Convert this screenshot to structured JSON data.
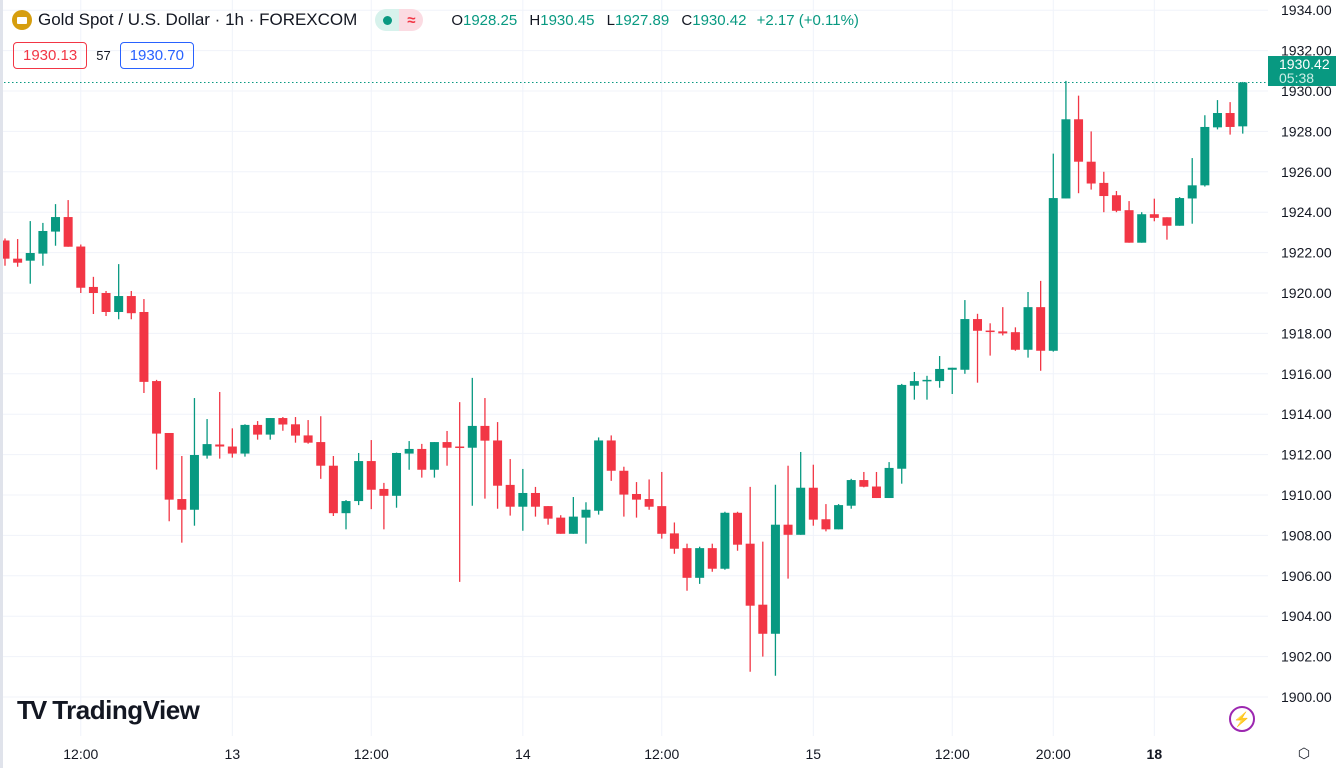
{
  "header": {
    "symbol_title": "Gold Spot / U.S. Dollar · 1h · FOREXCOM",
    "symbol_icon": "gold-bars-icon",
    "ohlc": {
      "o_label": "O",
      "o": "1928.25",
      "h_label": "H",
      "h": "1930.45",
      "l_label": "L",
      "l": "1927.89",
      "c_label": "C",
      "c": "1930.42",
      "change": "+2.17 (+0.11%)"
    },
    "bid": "1930.13",
    "spread": "57",
    "ask": "1930.70"
  },
  "last_price": {
    "price": "1930.42",
    "countdown": "05:38"
  },
  "logo_text": "TradingView",
  "colors": {
    "up": "#089981",
    "down": "#F23645",
    "grid": "#f0f3fa"
  },
  "chart_data": {
    "type": "candlestick",
    "title": "Gold Spot / U.S. Dollar · 1h · FOREXCOM",
    "ylim": [
      1899,
      1934.5
    ],
    "yticks": [
      "1900.00",
      "1902.00",
      "1904.00",
      "1906.00",
      "1908.00",
      "1910.00",
      "1912.00",
      "1914.00",
      "1916.00",
      "1918.00",
      "1920.00",
      "1922.00",
      "1924.00",
      "1926.00",
      "1928.00",
      "1930.00",
      "1932.00",
      "1934.00"
    ],
    "xticks": [
      {
        "i": 6,
        "label": "12:00"
      },
      {
        "i": 18,
        "label": "13"
      },
      {
        "i": 29,
        "label": "12:00"
      },
      {
        "i": 41,
        "label": "14"
      },
      {
        "i": 52,
        "label": "12:00"
      },
      {
        "i": 64,
        "label": "15"
      },
      {
        "i": 75,
        "label": "12:00"
      },
      {
        "i": 83,
        "label": "20:00"
      },
      {
        "i": 91,
        "label": "18",
        "bold": true
      }
    ],
    "ohlc": [
      [
        1922.6,
        1922.7,
        1921.35,
        1921.7
      ],
      [
        1921.7,
        1922.67,
        1921.3,
        1921.5
      ],
      [
        1921.6,
        1923.56,
        1920.46,
        1921.98
      ],
      [
        1921.95,
        1923.47,
        1921.35,
        1923.07
      ],
      [
        1923.04,
        1924.4,
        1922.34,
        1923.76
      ],
      [
        1923.76,
        1924.6,
        1922.29,
        1922.29
      ],
      [
        1922.3,
        1922.4,
        1920.0,
        1920.26
      ],
      [
        1920.3,
        1920.8,
        1918.96,
        1920.0
      ],
      [
        1920.0,
        1920.1,
        1918.86,
        1919.06
      ],
      [
        1919.06,
        1921.43,
        1918.7,
        1919.85
      ],
      [
        1919.85,
        1920.1,
        1918.7,
        1919.0
      ],
      [
        1919.06,
        1919.7,
        1915.05,
        1915.6
      ],
      [
        1915.64,
        1915.7,
        1911.26,
        1913.04
      ],
      [
        1913.07,
        1913.07,
        1908.7,
        1909.77
      ],
      [
        1909.8,
        1911.93,
        1907.64,
        1909.27
      ],
      [
        1909.27,
        1914.8,
        1908.48,
        1911.98
      ],
      [
        1911.95,
        1913.76,
        1911.8,
        1912.52
      ],
      [
        1912.5,
        1915.1,
        1911.8,
        1912.4
      ],
      [
        1912.4,
        1913.3,
        1911.85,
        1912.05
      ],
      [
        1912.05,
        1913.5,
        1911.9,
        1913.47
      ],
      [
        1913.47,
        1913.66,
        1912.74,
        1912.99
      ],
      [
        1912.99,
        1913.81,
        1912.74,
        1913.81
      ],
      [
        1913.81,
        1913.86,
        1913.18,
        1913.49
      ],
      [
        1913.5,
        1913.86,
        1912.59,
        1912.94
      ],
      [
        1912.95,
        1913.71,
        1912.54,
        1912.59
      ],
      [
        1912.62,
        1913.9,
        1910.8,
        1911.45
      ],
      [
        1911.45,
        1911.93,
        1908.96,
        1909.1
      ],
      [
        1909.1,
        1909.75,
        1908.3,
        1909.7
      ],
      [
        1909.7,
        1912.08,
        1909.5,
        1911.68
      ],
      [
        1911.68,
        1912.72,
        1909.3,
        1910.26
      ],
      [
        1910.3,
        1910.6,
        1908.3,
        1909.96
      ],
      [
        1909.96,
        1912.1,
        1909.37,
        1912.08
      ],
      [
        1912.05,
        1912.67,
        1911.25,
        1912.28
      ],
      [
        1912.28,
        1912.53,
        1910.86,
        1911.25
      ],
      [
        1911.25,
        1912.62,
        1910.86,
        1912.62
      ],
      [
        1912.62,
        1913.17,
        1911.45,
        1912.34
      ],
      [
        1912.4,
        1914.6,
        1905.7,
        1912.37
      ],
      [
        1912.34,
        1915.8,
        1909.47,
        1913.42
      ],
      [
        1913.42,
        1914.8,
        1909.82,
        1912.69
      ],
      [
        1912.7,
        1913.61,
        1909.32,
        1910.46
      ],
      [
        1910.5,
        1911.78,
        1908.98,
        1909.42
      ],
      [
        1909.42,
        1911.29,
        1908.23,
        1910.1
      ],
      [
        1910.1,
        1910.4,
        1908.93,
        1909.42
      ],
      [
        1909.45,
        1909.45,
        1908.53,
        1908.83
      ],
      [
        1908.88,
        1909.0,
        1908.08,
        1908.08
      ],
      [
        1908.08,
        1909.9,
        1908.08,
        1908.93
      ],
      [
        1908.88,
        1909.64,
        1907.59,
        1909.27
      ],
      [
        1909.22,
        1912.85,
        1909.03,
        1912.7
      ],
      [
        1912.7,
        1912.95,
        1910.7,
        1911.2
      ],
      [
        1911.2,
        1911.4,
        1908.93,
        1910.02
      ],
      [
        1910.05,
        1910.64,
        1908.88,
        1909.77
      ],
      [
        1909.8,
        1910.77,
        1909.27,
        1909.42
      ],
      [
        1909.45,
        1911.14,
        1907.84,
        1908.08
      ],
      [
        1908.1,
        1908.64,
        1907.09,
        1907.34
      ],
      [
        1907.37,
        1907.59,
        1905.26,
        1905.9
      ],
      [
        1905.9,
        1907.44,
        1905.6,
        1907.37
      ],
      [
        1907.37,
        1907.59,
        1906.2,
        1906.35
      ],
      [
        1906.35,
        1909.17,
        1906.3,
        1909.12
      ],
      [
        1909.12,
        1909.17,
        1907.24,
        1907.54
      ],
      [
        1907.59,
        1910.4,
        1901.25,
        1904.52
      ],
      [
        1904.57,
        1907.69,
        1902.0,
        1903.13
      ],
      [
        1903.13,
        1910.51,
        1901.05,
        1908.53
      ],
      [
        1908.53,
        1911.45,
        1905.86,
        1908.03
      ],
      [
        1908.03,
        1912.13,
        1908.03,
        1910.36
      ],
      [
        1910.36,
        1911.5,
        1908.48,
        1908.78
      ],
      [
        1908.8,
        1909.55,
        1908.2,
        1908.3
      ],
      [
        1908.3,
        1909.55,
        1908.3,
        1909.5
      ],
      [
        1909.47,
        1910.8,
        1909.32,
        1910.74
      ],
      [
        1910.74,
        1911.14,
        1910.38,
        1910.41
      ],
      [
        1910.42,
        1911.14,
        1909.85,
        1909.85
      ],
      [
        1909.85,
        1911.63,
        1909.85,
        1911.34
      ],
      [
        1911.3,
        1915.5,
        1910.56,
        1915.45
      ],
      [
        1915.41,
        1916.09,
        1914.72,
        1915.64
      ],
      [
        1915.64,
        1915.9,
        1914.72,
        1915.7
      ],
      [
        1915.64,
        1916.88,
        1915.31,
        1916.24
      ],
      [
        1916.2,
        1916.3,
        1915.0,
        1916.3
      ],
      [
        1916.2,
        1919.65,
        1916.0,
        1918.71
      ],
      [
        1918.71,
        1918.97,
        1915.56,
        1918.13
      ],
      [
        1918.14,
        1918.5,
        1916.9,
        1918.08
      ],
      [
        1918.1,
        1919.3,
        1917.9,
        1918.0
      ],
      [
        1918.06,
        1918.3,
        1917.14,
        1917.19
      ],
      [
        1917.19,
        1920.05,
        1916.8,
        1919.3
      ],
      [
        1919.3,
        1920.6,
        1916.15,
        1917.14
      ],
      [
        1917.14,
        1926.9,
        1917.1,
        1924.7
      ],
      [
        1924.68,
        1930.5,
        1924.68,
        1928.6
      ],
      [
        1928.6,
        1929.77,
        1924.94,
        1926.5
      ],
      [
        1926.5,
        1928.0,
        1925.12,
        1925.42
      ],
      [
        1925.45,
        1926.0,
        1924.0,
        1924.8
      ],
      [
        1924.84,
        1925.05,
        1924.0,
        1924.07
      ],
      [
        1924.1,
        1924.55,
        1922.49,
        1922.49
      ],
      [
        1922.49,
        1924.0,
        1922.49,
        1923.9
      ],
      [
        1923.9,
        1924.67,
        1923.55,
        1923.72
      ],
      [
        1923.75,
        1923.75,
        1922.64,
        1923.33
      ],
      [
        1923.33,
        1924.75,
        1923.33,
        1924.7
      ],
      [
        1924.68,
        1926.68,
        1923.43,
        1925.33
      ],
      [
        1925.33,
        1928.8,
        1925.27,
        1928.22
      ],
      [
        1928.2,
        1929.55,
        1928.1,
        1928.91
      ],
      [
        1928.91,
        1929.45,
        1927.84,
        1928.22
      ],
      [
        1928.25,
        1930.45,
        1927.89,
        1930.42
      ]
    ]
  }
}
